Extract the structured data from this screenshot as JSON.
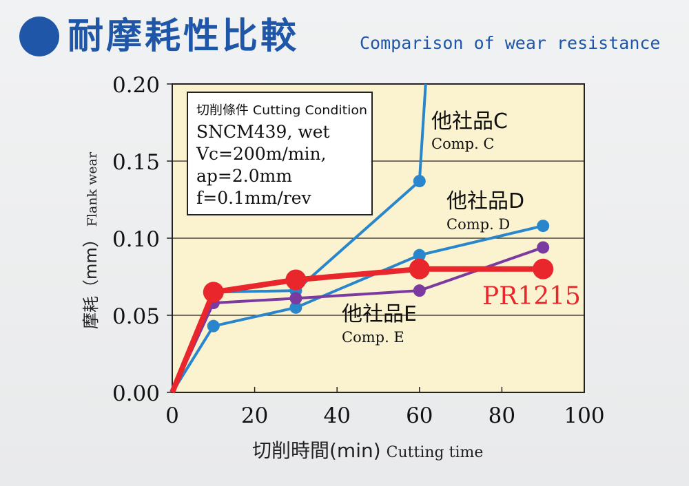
{
  "header": {
    "title_zh": "耐摩耗性比較",
    "title_en": "Comparison of wear resistance"
  },
  "colors": {
    "title": "#1f56a8",
    "plot_bg": "#fbf3cf",
    "comp_c": "#2a86cc",
    "comp_d": "#2a86cc",
    "comp_e": "#7b3aa0",
    "pr1215": "#e8262b"
  },
  "chart_data": {
    "type": "line",
    "xlabel_zh": "切削時間(min)",
    "xlabel_en": "Cutting time",
    "ylabel_zh": "摩耗（mm）",
    "ylabel_en": "Flank wear",
    "xlim": [
      0,
      100
    ],
    "ylim": [
      0,
      0.2
    ],
    "x_ticks": [
      "0",
      "20",
      "40",
      "60",
      "80",
      "100"
    ],
    "y_ticks": [
      "0.00",
      "0.05",
      "0.10",
      "0.15",
      "0.20"
    ],
    "grid": "horizontal",
    "conditions": {
      "title": "切削條件 Cutting Condition",
      "lines": [
        "SNCM439, wet",
        "Vc=200m/min,",
        "ap=2.0mm",
        "f=0.1mm/rev"
      ]
    },
    "series": [
      {
        "key": "comp_c",
        "name_zh": "他社品C",
        "name_en": "Comp. C",
        "points": [
          [
            0,
            0
          ],
          [
            10,
            0.065
          ],
          [
            30,
            0.066
          ],
          [
            60,
            0.137
          ]
        ],
        "tail": [
          61.5,
          0.2
        ]
      },
      {
        "key": "comp_d",
        "name_zh": "他社品D",
        "name_en": "Comp. D",
        "points": [
          [
            0,
            0
          ],
          [
            10,
            0.043
          ],
          [
            30,
            0.055
          ],
          [
            60,
            0.089
          ],
          [
            90,
            0.108
          ]
        ]
      },
      {
        "key": "comp_e",
        "name_zh": "他社品E",
        "name_en": "Comp. E",
        "points": [
          [
            0,
            0
          ],
          [
            10,
            0.058
          ],
          [
            30,
            0.061
          ],
          [
            60,
            0.066
          ],
          [
            90,
            0.094
          ]
        ]
      },
      {
        "key": "pr1215",
        "name": "PR1215",
        "points": [
          [
            0,
            0
          ],
          [
            10,
            0.065
          ],
          [
            30,
            0.073
          ],
          [
            60,
            0.08
          ],
          [
            90,
            0.08
          ]
        ]
      }
    ]
  }
}
